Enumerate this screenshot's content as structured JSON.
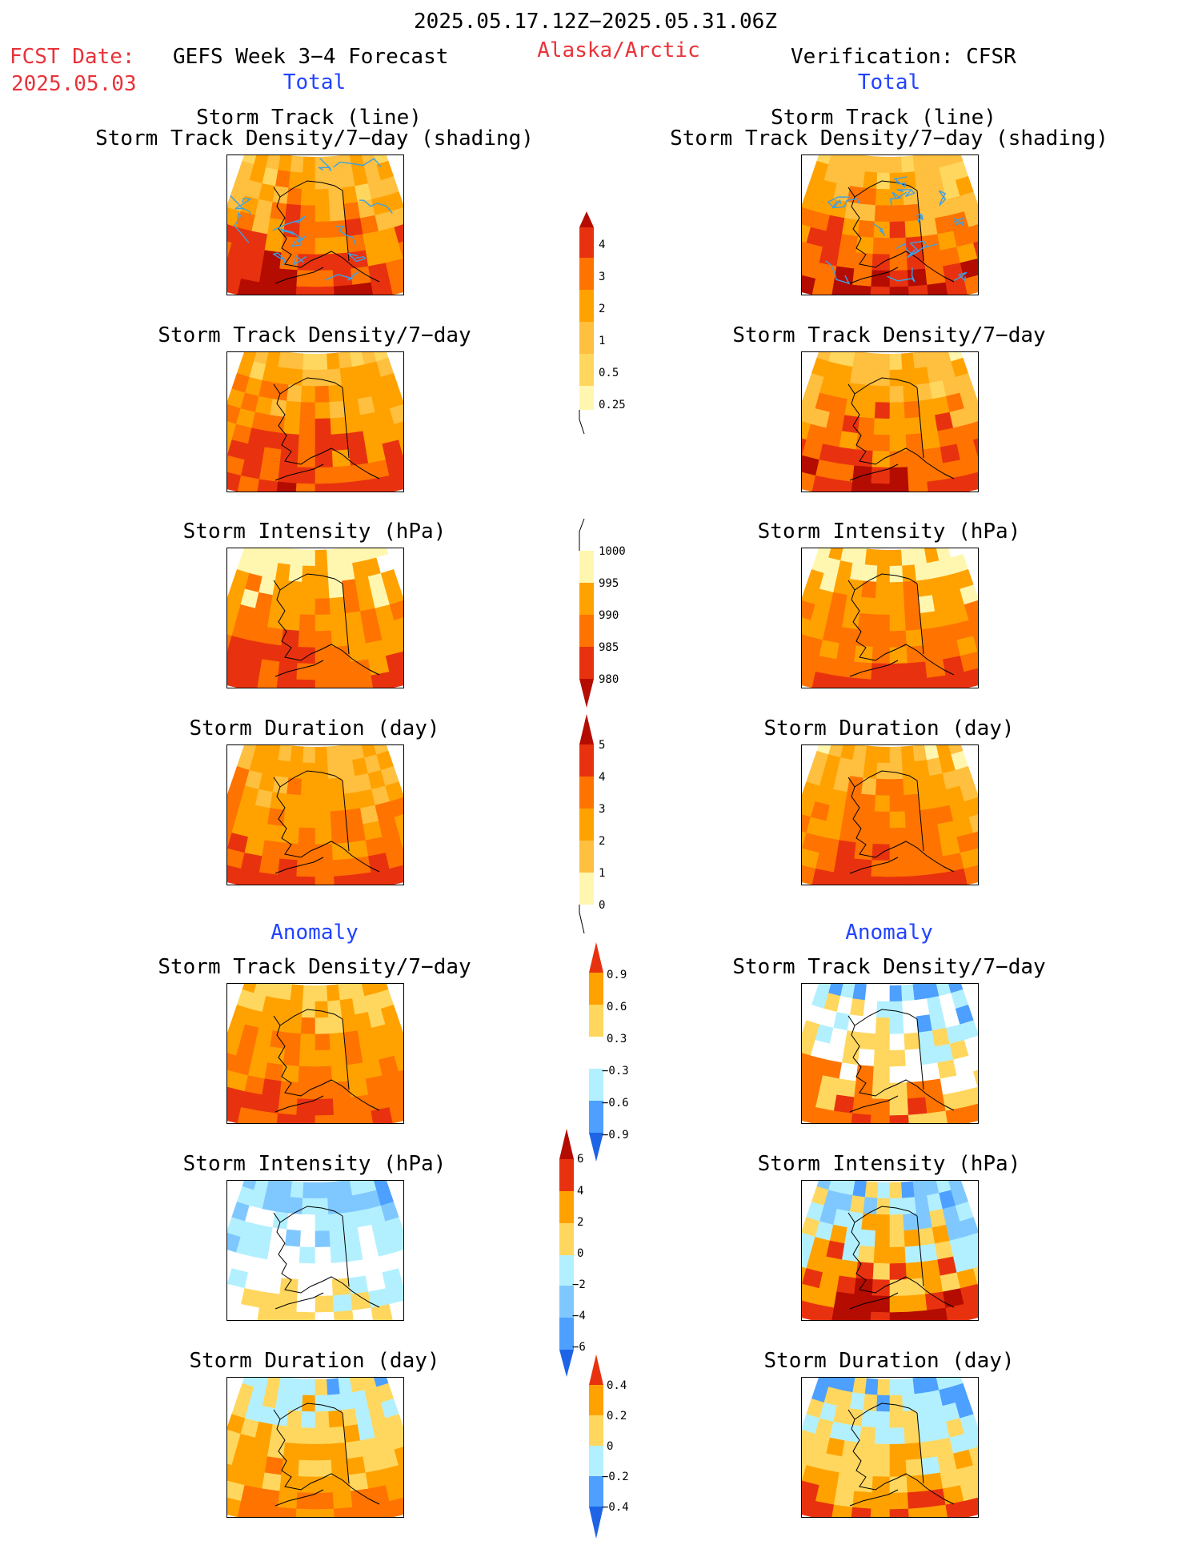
{
  "header": {
    "period": "2025.05.17.12Z−2025.05.31.06Z",
    "fcst_label": "FCST Date:",
    "fcst_date": "2025.05.03",
    "forecast_name": "GEFS Week 3−4 Forecast",
    "region": "Alaska/Arctic",
    "verification": "Verification: CFSR",
    "left_section": "Total",
    "right_section": "Total",
    "left_anomaly": "Anomaly",
    "right_anomaly": "Anomaly"
  },
  "panel_titles": {
    "track_line": "Storm Track (line)",
    "track_shading": "Storm Track Density/7−day (shading)",
    "density": "Storm Track Density/7−day",
    "intensity": "Storm Intensity (hPa)",
    "duration": "Storm Duration (day)"
  },
  "colors": {
    "pale_yellow": "#fff7b0",
    "yellow": "#ffd75e",
    "light_orange": "#ffbf3f",
    "orange": "#ffa200",
    "dark_orange": "#ff7300",
    "red": "#e8320f",
    "dark_red": "#b40c00",
    "light_blue": "#b3f0ff",
    "sky_blue": "#7fc8ff",
    "mid_blue": "#4da0ff",
    "blue": "#1e64e6",
    "track_line": "#3ca0e6"
  },
  "chart_data": [
    {
      "type": "heatmap",
      "name": "density_total_colorbar",
      "levels": [
        "0.25",
        "0.5",
        "1",
        "2",
        "3",
        "4"
      ]
    },
    {
      "type": "heatmap",
      "name": "intensity_total_colorbar",
      "levels": [
        "1000",
        "995",
        "990",
        "985",
        "980"
      ]
    },
    {
      "type": "heatmap",
      "name": "duration_total_colorbar",
      "levels": [
        "0",
        "1",
        "2",
        "3",
        "4",
        "5"
      ]
    },
    {
      "type": "heatmap",
      "name": "density_anomaly_colorbar",
      "levels": [
        "0.9",
        "0.6",
        "0.3",
        "−0.3",
        "−0.6",
        "−0.9"
      ]
    },
    {
      "type": "heatmap",
      "name": "intensity_anomaly_colorbar",
      "levels": [
        "6",
        "4",
        "2",
        "0",
        "−2",
        "−4",
        "−6"
      ]
    },
    {
      "type": "heatmap",
      "name": "duration_anomaly_colorbar",
      "levels": [
        "0.4",
        "0.2",
        "0",
        "−0.2",
        "−0.4"
      ]
    }
  ]
}
